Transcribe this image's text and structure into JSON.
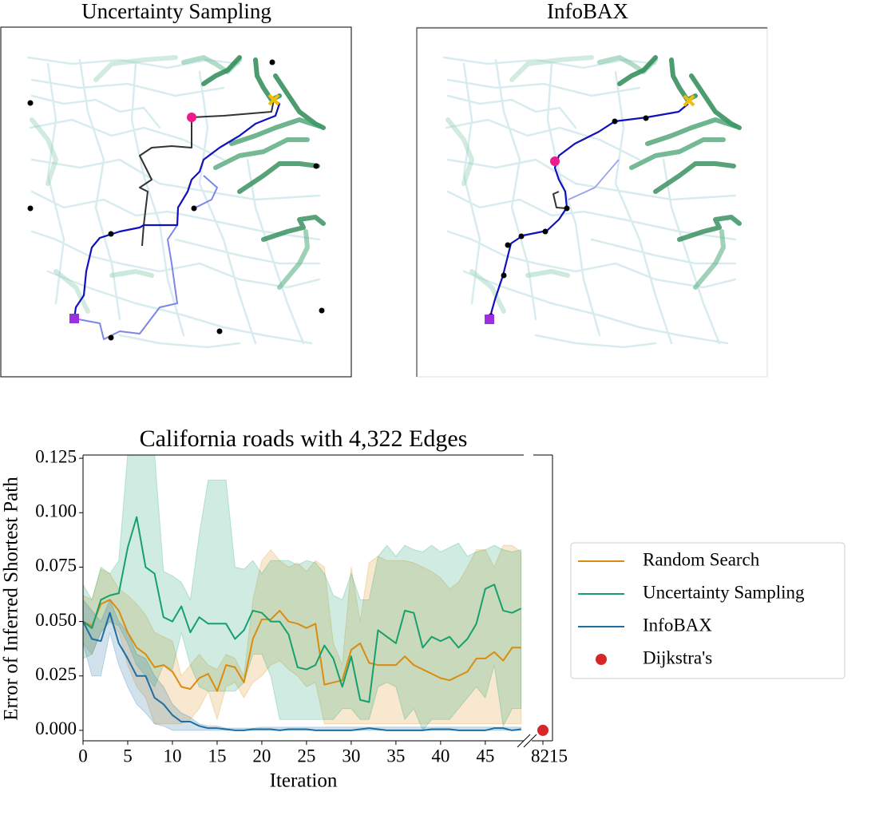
{
  "panels": [
    {
      "title": "Uncertainty Sampling"
    },
    {
      "title": "InfoBAX"
    }
  ],
  "chart_data": {
    "type": "line",
    "title": "California roads with 4,322 Edges",
    "x_label": "Iteration",
    "y_label": "Error of Inferred Shortest Path",
    "x": [
      0,
      1,
      2,
      3,
      4,
      5,
      6,
      7,
      8,
      9,
      10,
      11,
      12,
      13,
      14,
      15,
      16,
      17,
      18,
      19,
      20,
      21,
      22,
      23,
      24,
      25,
      26,
      27,
      28,
      29,
      30,
      31,
      32,
      33,
      34,
      35,
      36,
      37,
      38,
      39,
      40,
      41,
      42,
      43,
      44,
      45,
      46,
      47,
      48,
      49
    ],
    "xlim": [
      0,
      49.3
    ],
    "xticks": [
      0,
      5,
      10,
      15,
      20,
      25,
      30,
      35,
      40,
      45
    ],
    "x_break": {
      "xlim": [
        8214,
        8216
      ],
      "xticks": [
        8215
      ]
    },
    "ylim": [
      -0.0048,
      0.1265
    ],
    "yticks": [
      {
        "value": 0,
        "label": "0.000"
      },
      {
        "value": 0.025,
        "label": "0.025"
      },
      {
        "value": 0.05,
        "label": "0.050"
      },
      {
        "value": 0.075,
        "label": "0.075"
      },
      {
        "value": 0.1,
        "label": "0.100"
      },
      {
        "value": 0.125,
        "label": "0.125"
      }
    ],
    "grid": false,
    "legend": "outside right",
    "series": [
      {
        "name": "Random Search",
        "color": "#d98c10",
        "values": [
          0.05,
          0.048,
          0.058,
          0.06,
          0.055,
          0.045,
          0.038,
          0.035,
          0.029,
          0.03,
          0.027,
          0.02,
          0.019,
          0.024,
          0.026,
          0.018,
          0.03,
          0.029,
          0.022,
          0.042,
          0.051,
          0.051,
          0.055,
          0.05,
          0.049,
          0.047,
          0.049,
          0.021,
          0.022,
          0.023,
          0.037,
          0.04,
          0.031,
          0.03,
          0.03,
          0.03,
          0.034,
          0.03,
          0.028,
          0.026,
          0.024,
          0.023,
          0.025,
          0.027,
          0.033,
          0.033,
          0.036,
          0.032,
          0.038,
          0.038
        ],
        "upper": [
          0.062,
          0.06,
          0.074,
          0.072,
          0.065,
          0.062,
          0.058,
          0.053,
          0.045,
          0.043,
          0.041,
          0.025,
          0.03,
          0.035,
          0.03,
          0.028,
          0.035,
          0.033,
          0.025,
          0.06,
          0.078,
          0.083,
          0.078,
          0.075,
          0.077,
          0.073,
          0.078,
          0.075,
          0.04,
          0.03,
          0.075,
          0.05,
          0.077,
          0.08,
          0.078,
          0.078,
          0.078,
          0.077,
          0.075,
          0.073,
          0.07,
          0.065,
          0.068,
          0.075,
          0.083,
          0.083,
          0.075,
          0.085,
          0.085,
          0.082
        ],
        "lower": [
          0.04,
          0.035,
          0.045,
          0.05,
          0.045,
          0.03,
          0.02,
          0.015,
          0.003,
          0.003,
          0.003,
          0.003,
          0.005,
          0.01,
          0.018,
          0.005,
          0.02,
          0.022,
          0.015,
          0.022,
          0.025,
          0.03,
          0.032,
          0.028,
          0.025,
          0.02,
          0.022,
          0.003,
          0.003,
          0.003,
          0.003,
          0.003,
          0.003,
          0.003,
          0.003,
          0.003,
          0.003,
          0.003,
          0.003,
          0.003,
          0.003,
          0.003,
          0.003,
          0.003,
          0.003,
          0.003,
          0.003,
          0.003,
          0.003,
          0.003
        ]
      },
      {
        "name": "Uncertainty Sampling",
        "color": "#16a06c",
        "values": [
          0.05,
          0.047,
          0.06,
          0.062,
          0.063,
          0.084,
          0.098,
          0.075,
          0.072,
          0.052,
          0.05,
          0.057,
          0.045,
          0.052,
          0.049,
          0.049,
          0.049,
          0.042,
          0.046,
          0.055,
          0.054,
          0.05,
          0.05,
          0.044,
          0.029,
          0.028,
          0.03,
          0.039,
          0.033,
          0.02,
          0.034,
          0.014,
          0.013,
          0.046,
          0.043,
          0.04,
          0.055,
          0.054,
          0.038,
          0.043,
          0.041,
          0.043,
          0.038,
          0.042,
          0.049,
          0.065,
          0.067,
          0.055,
          0.054,
          0.056
        ],
        "upper": [
          0.067,
          0.06,
          0.075,
          0.072,
          0.078,
          0.127,
          0.127,
          0.127,
          0.127,
          0.073,
          0.071,
          0.068,
          0.06,
          0.09,
          0.115,
          0.115,
          0.115,
          0.075,
          0.074,
          0.078,
          0.072,
          0.078,
          0.078,
          0.078,
          0.076,
          0.078,
          0.077,
          0.072,
          0.062,
          0.06,
          0.072,
          0.06,
          0.06,
          0.08,
          0.085,
          0.08,
          0.085,
          0.083,
          0.082,
          0.085,
          0.082,
          0.084,
          0.086,
          0.08,
          0.082,
          0.083,
          0.085,
          0.083,
          0.082,
          0.083
        ],
        "lower": [
          0.033,
          0.035,
          0.045,
          0.05,
          0.048,
          0.04,
          0.03,
          0.025,
          0.02,
          0.03,
          0.028,
          0.045,
          0.03,
          0.02,
          0.018,
          0.018,
          0.018,
          0.018,
          0.022,
          0.035,
          0.035,
          0.025,
          0.005,
          0.005,
          0.005,
          0.005,
          0.005,
          0.005,
          0.005,
          0.01,
          0.01,
          0.005,
          0.005,
          0.02,
          0.022,
          0.02,
          0.005,
          0.01,
          0.0,
          0.005,
          0.005,
          0.005,
          0.01,
          0.015,
          0.02,
          0.015,
          0.03,
          0.002,
          0.01,
          0.01
        ]
      },
      {
        "name": "InfoBAX",
        "color": "#1f6ea3",
        "values": [
          0.05,
          0.042,
          0.041,
          0.054,
          0.04,
          0.033,
          0.025,
          0.025,
          0.015,
          0.012,
          0.007,
          0.004,
          0.004,
          0.002,
          0.001,
          0.001,
          0.0005,
          0,
          0,
          0.0005,
          0.0005,
          0.0005,
          0,
          0.0005,
          0.0005,
          0.0005,
          0,
          0,
          0,
          0,
          0,
          0.0005,
          0.001,
          0.0005,
          0,
          0,
          0,
          0,
          0,
          0.0005,
          0.0005,
          0.0005,
          0,
          0,
          0,
          0,
          0.001,
          0.001,
          0,
          0.0005
        ],
        "upper": [
          0.06,
          0.055,
          0.05,
          0.06,
          0.05,
          0.045,
          0.035,
          0.033,
          0.025,
          0.02,
          0.012,
          0.008,
          0.006,
          0.003,
          0.002,
          0.002,
          0.001,
          0.001,
          0.001,
          0.001,
          0.0015,
          0.0015,
          0.0015,
          0.0015,
          0.0015,
          0.0015,
          0.0015,
          0.0015,
          0.0015,
          0.0015,
          0.0015,
          0.0015,
          0.0015,
          0.0015,
          0.0015,
          0.0015,
          0.0015,
          0.0015,
          0.0015,
          0.0015,
          0.0015,
          0.0015,
          0.0015,
          0.0015,
          0.0015,
          0.0015,
          0.0015,
          0.0015,
          0.0015,
          0.0015
        ],
        "lower": [
          0.04,
          0.025,
          0.025,
          0.045,
          0.03,
          0.02,
          0.012,
          0.008,
          0.003,
          0.002,
          0,
          0,
          0,
          0,
          0,
          0,
          0,
          0,
          0,
          0,
          0,
          0,
          0,
          0,
          0,
          0,
          0,
          0,
          0,
          0,
          0,
          0,
          0,
          0,
          0,
          0,
          0,
          0,
          0,
          0,
          0,
          0,
          0,
          0,
          0,
          0,
          0,
          0,
          0,
          0
        ]
      },
      {
        "name": "Dijkstra's",
        "color": "#d62728",
        "marker": "dot",
        "x": [
          8215
        ],
        "values": [
          0
        ]
      }
    ]
  }
}
